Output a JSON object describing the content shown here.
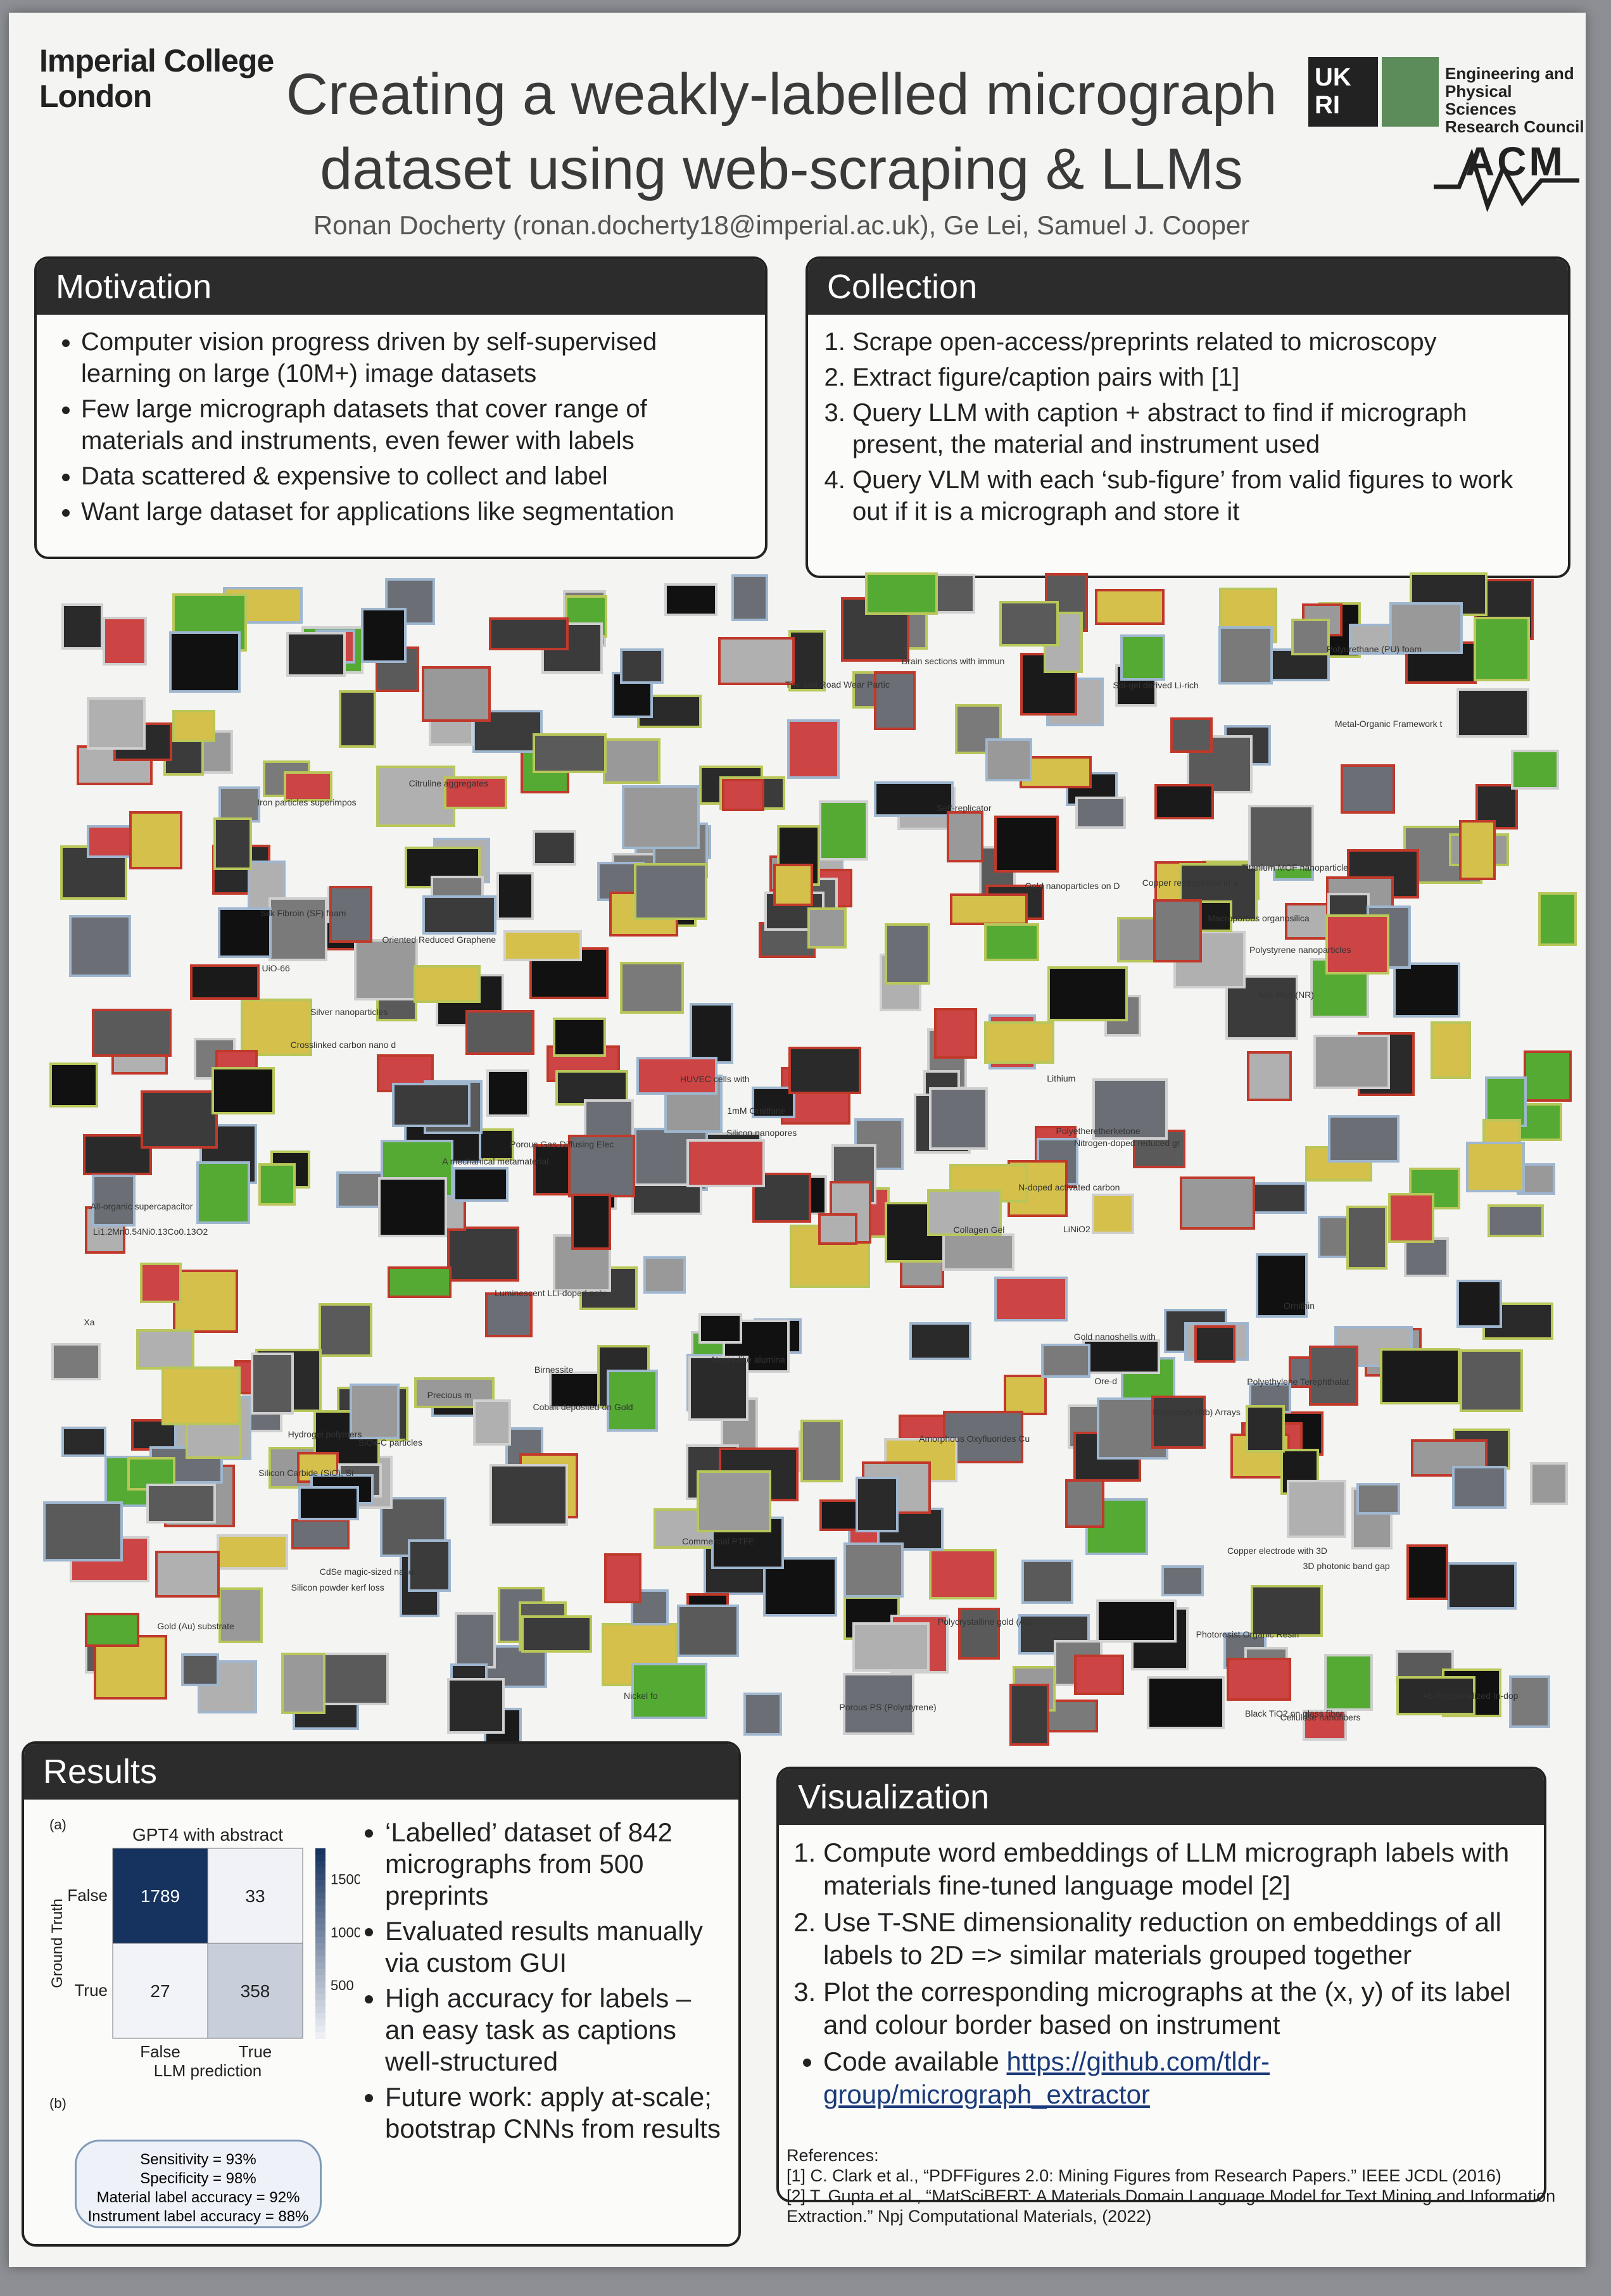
{
  "header": {
    "institution_line1": "Imperial College",
    "institution_line2": "London",
    "title_line1": "Creating a weakly-labelled micrograph",
    "title_line2": "dataset using web-scraping & LLMs",
    "authors": "Ronan Docherty (ronan.docherty18@imperial.ac.uk), Ge Lei, Samuel J. Cooper",
    "ukri_logo": "UK RI",
    "epsrc_line1": "Engineering and",
    "epsrc_line2": "Physical Sciences",
    "epsrc_line3": "Research Council",
    "acm_logo": "ACM"
  },
  "motivation": {
    "heading": "Motivation",
    "bullets": [
      "Computer vision progress driven by self-supervised learning on large (10M+) image datasets",
      "Few large micrograph datasets that cover range of materials and instruments, even fewer with labels",
      "Data scattered & expensive to collect and label",
      "Want large dataset for applications like segmentation"
    ]
  },
  "collection": {
    "heading": "Collection",
    "steps": [
      "Scrape open-access/preprints related to microscopy",
      "Extract figure/caption pairs with [1]",
      "Query LLM with caption + abstract to find if micrograph present, the material and instrument used",
      "Query VLM with each ‘sub-figure’ from valid figures to work out if it is a micrograph and store it"
    ]
  },
  "scatter_labels": [
    "HUVEC cells with",
    "Copper restructured in a",
    "Li1.2Mn0.54Ni0.13Co0.13O2",
    "Iron particles superimpos",
    "All-organic supercapacitor",
    "Luminescent LLi-doped poly",
    "Copper electrode with 3D",
    "Polyetheretherketone",
    "Silicon Carbide (SiC), Si",
    "Polyethylene Terephthalat",
    "Crosslinked carbon nano d",
    "Nile Red (NR)",
    "Tire and Road Wear Partic",
    "Gold nanoshells with",
    "Nanobody (Nb) Arrays",
    "Silver nanoparticles",
    "LiNiO2",
    "Citruline aggregates",
    "Silicon powder kerf loss",
    "1mM Ornithine",
    "Brain sections with immun",
    "Photoresist Organic Resin",
    "Birnessite",
    "Hydrogel polymers",
    "Commercial PTFE",
    "Collagen Gel",
    "A mechanical metamaterial",
    "Nickel fo",
    "Lithium",
    "Precious m",
    "Xa",
    "Ornithin",
    "Nacre-like alumina",
    "Self-replicator",
    "Silicon nanopores",
    "SiOx-C particles",
    "Porous PS (Polystyrene)",
    "Polystyrene nanoparticles",
    "Titanium MOF nanoparticle",
    "Silk Fibroin (SF) foam",
    "Porous Gas-Diffusing Elec",
    "N-doped activated carbon",
    "Nitrogen-doped reduced gr",
    "Oriented Reduced Graphene",
    "Gold (Au) substrate",
    "Polycrystalline gold (Au)",
    "Metal-Organic Framework t",
    "Cobalt deposited on Gold",
    "CdSe magic-sized nano",
    "Gold nanoparticles on D",
    "Macroporous organosilica",
    "Ore-d",
    "Polyurethane (PU) foam",
    "Black TiO2 on glass fiber",
    "Amorphous Oxyfluorides Cu",
    "3D photonic band gap",
    "Sol-gel derived Li-rich",
    "UiO-66",
    "AL-functionalized In-dop",
    "Cellulose nanofibers"
  ],
  "results": {
    "heading": "Results",
    "panel_a_label": "(a)",
    "panel_b_label": "(b)",
    "bullets": [
      "‘Labelled’ dataset of 842 micrographs from 500 preprints",
      "Evaluated results manually via custom GUI",
      "High accuracy for labels – an easy task as captions well-structured",
      "Future work: apply at-scale; bootstrap CNNs from results"
    ],
    "stats": {
      "sensitivity": "Sensitivity = 93%",
      "specificity": "Specificity = 98%",
      "material": "Material label accuracy = 92%",
      "instrument": "Instrument label accuracy = 88%"
    }
  },
  "chart_data": {
    "type": "heatmap",
    "title": "GPT4 with abstract",
    "xlabel": "LLM prediction",
    "ylabel": "Ground Truth",
    "x_categories": [
      "False",
      "True"
    ],
    "y_categories": [
      "False",
      "True"
    ],
    "values": [
      [
        1789,
        33
      ],
      [
        27,
        358
      ]
    ],
    "colorbar_ticks": [
      1500,
      1000,
      500
    ],
    "colorbar_range": [
      0,
      1789
    ],
    "colormap": [
      "#f4f6fa",
      "#16325e"
    ]
  },
  "visualization": {
    "heading": "Visualization",
    "steps": [
      "Compute word embeddings of LLM micrograph labels with materials fine-tuned language model [2]",
      "Use T-SNE dimensionality reduction on embeddings of all labels to 2D => similar materials grouped together",
      "Plot the corresponding micrographs at the (x, y) of its label and colour border based on instrument"
    ],
    "code_prefix": "Code available ",
    "code_link": "https://github.com/tldr-group/micrograph_extractor"
  },
  "references": {
    "heading": "References:",
    "ref1": "[1] C. Clark et al., “PDFFigures 2.0: Mining Figures from Research Papers.” IEEE JCDL (2016)",
    "ref2": "[2] T. Gupta et al., “MatSciBERT: A Materials Domain Language Model for Text Mining and Information Extraction.” Npj Computational Materials, (2022)"
  },
  "colors": {
    "header_bg": "#2c2c2c",
    "border_sem": "#9fb6cf",
    "border_tem": "#b9c65a",
    "border_optical": "#c0392b",
    "ukri_green": "#5b8c5a"
  }
}
